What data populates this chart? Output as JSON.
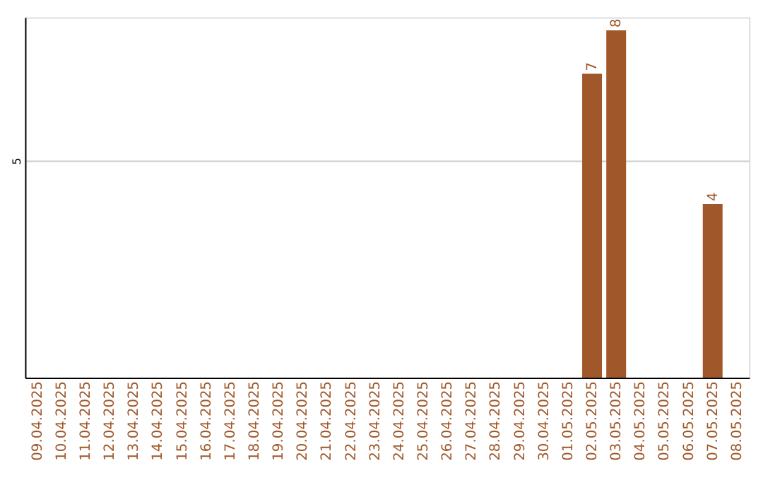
{
  "chart_data": {
    "type": "bar",
    "categories": [
      "09.04.2025",
      "10.04.2025",
      "11.04.2025",
      "12.04.2025",
      "13.04.2025",
      "14.04.2025",
      "15.04.2025",
      "16.04.2025",
      "17.04.2025",
      "18.04.2025",
      "19.04.2025",
      "20.04.2025",
      "21.04.2025",
      "22.04.2025",
      "23.04.2025",
      "24.04.2025",
      "25.04.2025",
      "26.04.2025",
      "27.04.2025",
      "28.04.2025",
      "29.04.2025",
      "30.04.2025",
      "01.05.2025",
      "02.05.2025",
      "03.05.2025",
      "04.05.2025",
      "05.05.2025",
      "06.05.2025",
      "07.05.2025",
      "08.05.2025"
    ],
    "values": [
      null,
      null,
      null,
      null,
      null,
      null,
      null,
      null,
      null,
      null,
      null,
      null,
      null,
      null,
      null,
      null,
      null,
      null,
      null,
      null,
      null,
      null,
      null,
      7,
      8,
      null,
      null,
      null,
      4,
      null
    ],
    "color": "#a0582a",
    "ylim": [
      0,
      8.3
    ],
    "yticks": [
      5
    ],
    "grid": "y",
    "data_labels": true
  }
}
